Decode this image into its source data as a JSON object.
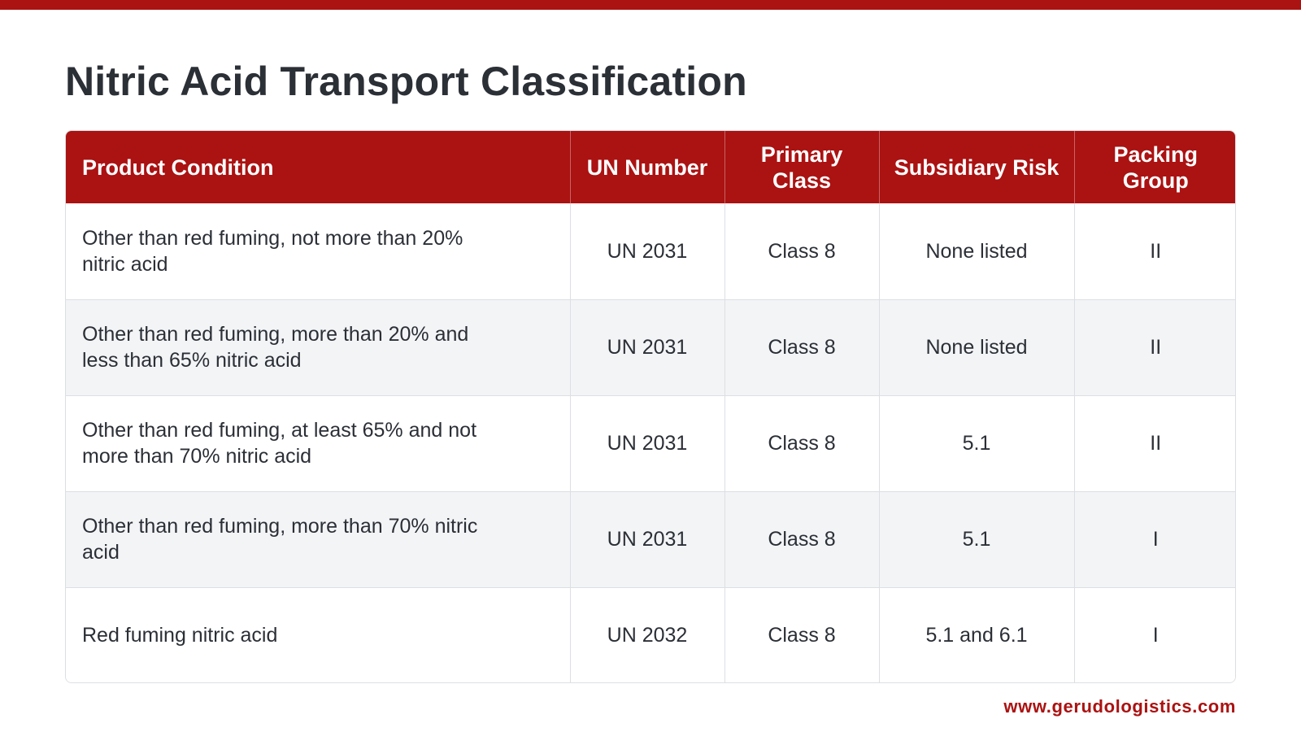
{
  "colors": {
    "accent": "#ab1212",
    "title_text": "#2b2f36",
    "row_alt": "#f3f4f6",
    "border": "#dcdfe3"
  },
  "title": "Nitric Acid Transport Classification",
  "table": {
    "headers": [
      "Product Condition",
      "UN Number",
      "Primary Class",
      "Subsidiary Risk",
      "Packing Group"
    ],
    "rows": [
      {
        "condition": "Other than red fuming, not more than 20% nitric acid",
        "un_number": "UN 2031",
        "primary_class": "Class 8",
        "subsidiary_risk": "None listed",
        "packing_group": "II"
      },
      {
        "condition": "Other than red fuming, more than 20% and less than 65% nitric acid",
        "un_number": "UN 2031",
        "primary_class": "Class 8",
        "subsidiary_risk": "None listed",
        "packing_group": "II"
      },
      {
        "condition": "Other than red fuming, at least 65% and not more than 70% nitric acid",
        "un_number": "UN 2031",
        "primary_class": "Class 8",
        "subsidiary_risk": "5.1",
        "packing_group": "II"
      },
      {
        "condition": "Other than red fuming, more than 70% nitric acid",
        "un_number": "UN 2031",
        "primary_class": "Class 8",
        "subsidiary_risk": "5.1",
        "packing_group": "I"
      },
      {
        "condition": "Red fuming nitric acid",
        "un_number": "UN 2032",
        "primary_class": "Class 8",
        "subsidiary_risk": "5.1 and 6.1",
        "packing_group": "I"
      }
    ]
  },
  "footer": {
    "website": "www.gerudologistics.com"
  }
}
